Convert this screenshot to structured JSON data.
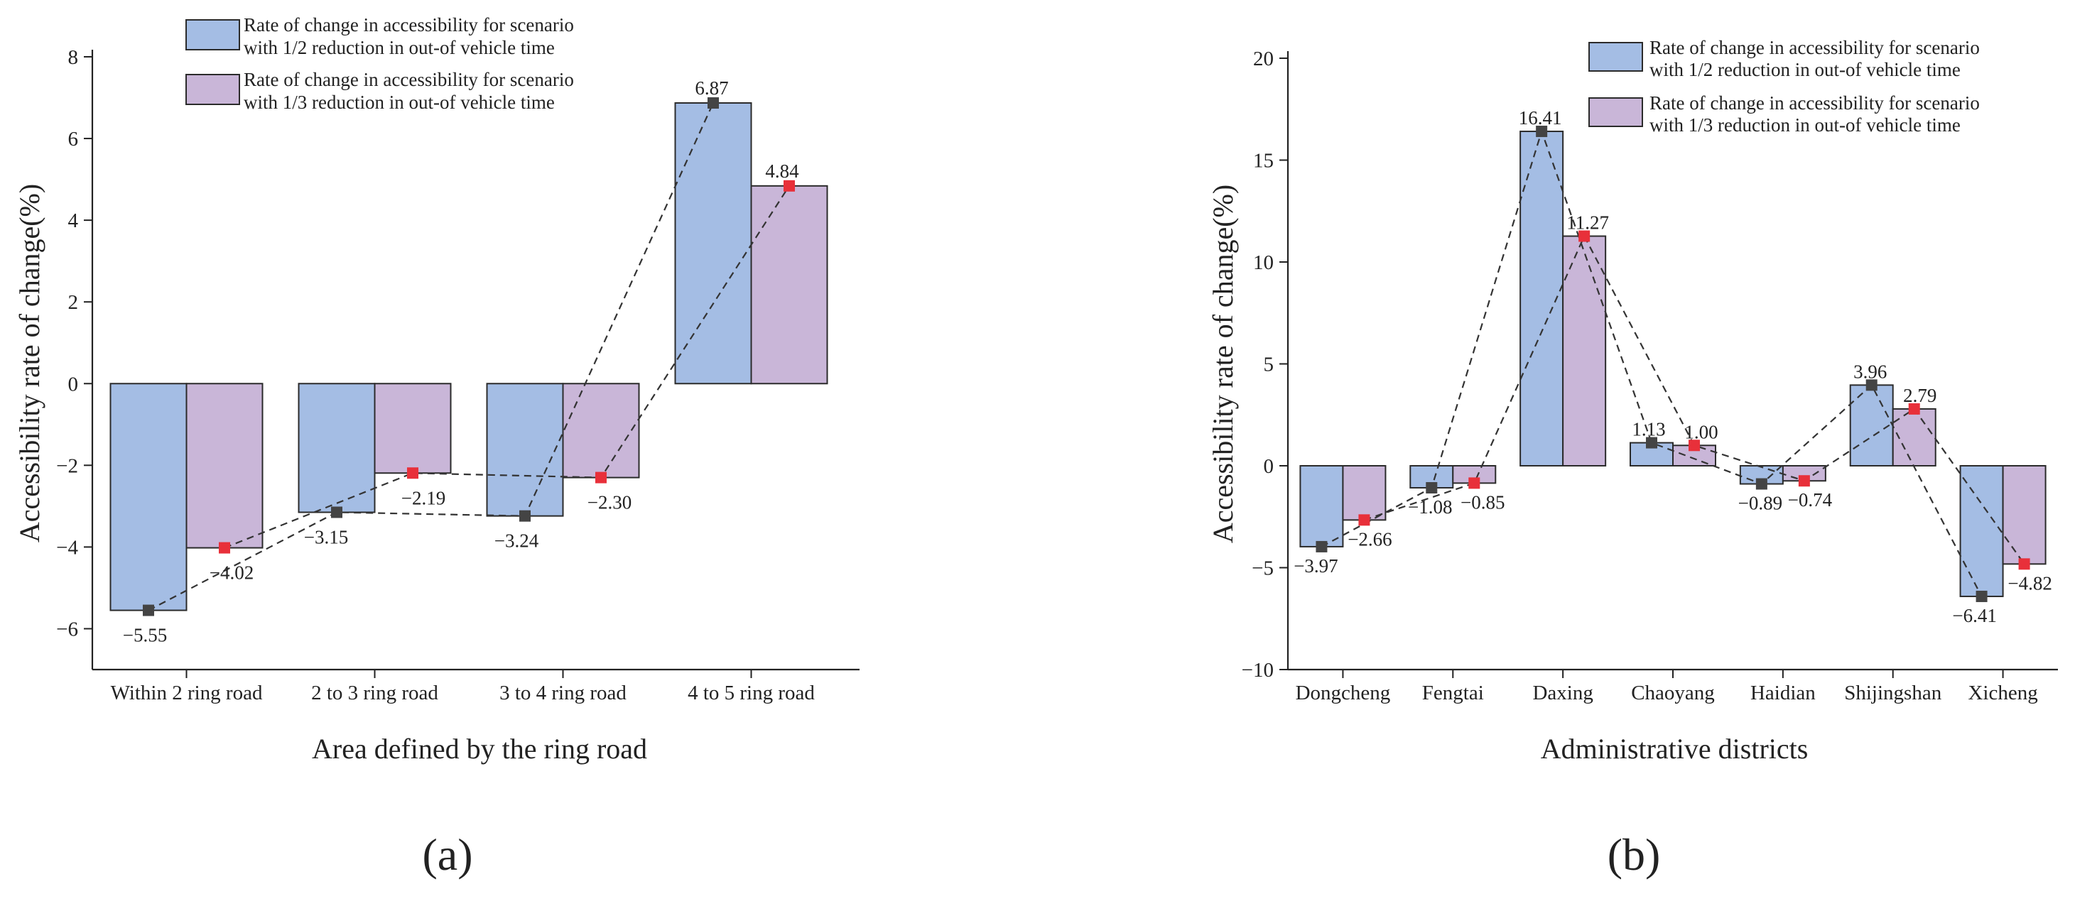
{
  "colors": {
    "series_a": "#a4bde4",
    "series_b": "#c9b6d8",
    "marker_a": "#444444",
    "marker_b": "#e8303a"
  },
  "chart_data": [
    {
      "panel": "a",
      "type": "bar",
      "caption": "(a)",
      "categories": [
        "Within 2 ring road",
        "2 to 3 ring road",
        "3 to 4 ring road",
        "4 to 5 ring road"
      ],
      "series": [
        {
          "name": "Rate of change in accessibility for scenario with 1/2 reduction in out-of vehicle time",
          "legend_lines": [
            "Rate of change in accessibility for scenario",
            "with 1/2 reduction in out-of vehicle time"
          ],
          "values": [
            -5.55,
            -3.15,
            -3.24,
            6.87
          ],
          "labels": [
            "−5.55",
            "−3.15",
            "−3.24",
            "6.87"
          ]
        },
        {
          "name": "Rate of change in accessibility for scenario with 1/3 reduction in out-of vehicle time",
          "legend_lines": [
            "Rate of change in accessibility for scenario",
            "with 1/3 reduction in out-of vehicle time"
          ],
          "values": [
            -4.02,
            -2.19,
            -2.3,
            4.84
          ],
          "labels": [
            "−4.02",
            "−2.19",
            "−2.30",
            "4.84"
          ]
        }
      ],
      "xlabel": "Area defined by the ring road",
      "ylabel": "Accessibility rate of change(%)",
      "ylim": [
        -7,
        8
      ],
      "yticks": [
        -6,
        -4,
        -2,
        0,
        2,
        4,
        6,
        8
      ],
      "ytick_labels": [
        "−6",
        "−4",
        "−2",
        "0",
        "2",
        "4",
        "6",
        "8"
      ],
      "legend": "top-center"
    },
    {
      "panel": "b",
      "type": "bar",
      "caption": "(b)",
      "categories": [
        "Dongcheng",
        "Fengtai",
        "Daxing",
        "Chaoyang",
        "Haidian",
        "Shijingshan",
        "Xicheng"
      ],
      "series": [
        {
          "name": "Rate of change in accessibility for scenario with 1/2 reduction in out-of vehicle time",
          "legend_lines": [
            "Rate of change in accessibility for scenario",
            "with 1/2 reduction in out-of vehicle time"
          ],
          "values": [
            -3.97,
            -1.08,
            16.41,
            1.13,
            -0.89,
            3.96,
            -6.41
          ],
          "labels": [
            "−3.97",
            "−1.08",
            "16.41",
            "1.13",
            "−0.89",
            "3.96",
            "−6.41"
          ]
        },
        {
          "name": "Rate of change in accessibility for scenario with 1/3 reduction in out-of vehicle time",
          "legend_lines": [
            "Rate of change in accessibility for scenario",
            "with 1/3 reduction in out-of vehicle time"
          ],
          "values": [
            -2.66,
            -0.85,
            11.27,
            1.0,
            -0.74,
            2.79,
            -4.82
          ],
          "labels": [
            "−2.66",
            "−0.85",
            "11.27",
            "1.00",
            "−0.74",
            "2.79",
            "−4.82"
          ]
        }
      ],
      "xlabel": "Administrative districts",
      "ylabel": "Accessibility rate of change(%)",
      "ylim": [
        -10,
        20
      ],
      "yticks": [
        -10,
        -5,
        0,
        5,
        10,
        15,
        20
      ],
      "ytick_labels": [
        "−10",
        "−5",
        "0",
        "5",
        "10",
        "15",
        "20"
      ],
      "legend": "top-right"
    }
  ]
}
